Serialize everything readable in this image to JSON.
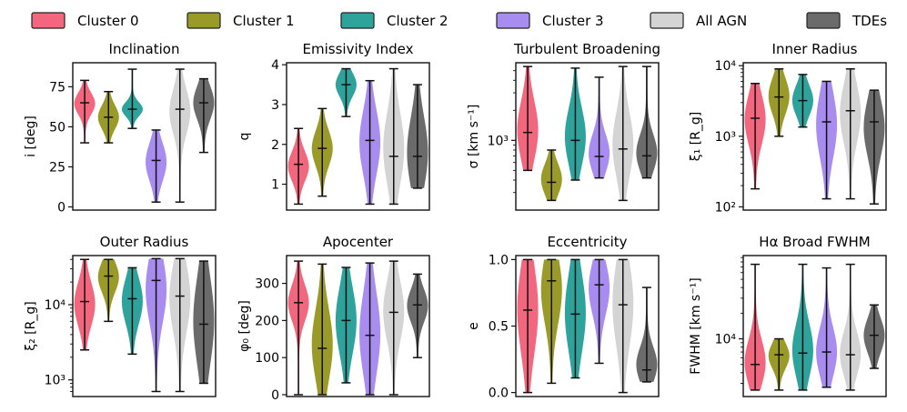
{
  "legend": [
    {
      "label": "Cluster 0",
      "color": "#f2677e"
    },
    {
      "label": "Cluster 1",
      "color": "#9a9a28"
    },
    {
      "label": "Cluster 2",
      "color": "#2ea39b"
    },
    {
      "label": "Cluster 3",
      "color": "#a98cf0"
    },
    {
      "label": "All AGN",
      "color": "#d4d4d4"
    },
    {
      "label": "TDEs",
      "color": "#6b6b6b"
    }
  ],
  "chart_data": [
    {
      "type": "violin",
      "title": "Inclination",
      "ylabel": "i [deg]",
      "scale": "linear",
      "ylim": [
        -2,
        90
      ],
      "ticks": [
        0,
        25,
        50,
        75
      ],
      "tick_labels": [
        "0",
        "25",
        "50",
        "75"
      ],
      "minor": [],
      "series": [
        {
          "name": "Cluster 0",
          "min": 40,
          "max": 79,
          "median": 65,
          "q1": 60,
          "q3": 69
        },
        {
          "name": "Cluster 1",
          "min": 40,
          "max": 72,
          "median": 56,
          "q1": 51,
          "q3": 61
        },
        {
          "name": "Cluster 2",
          "min": 49,
          "max": 86,
          "median": 61,
          "q1": 58,
          "q3": 64
        },
        {
          "name": "Cluster 3",
          "min": 3,
          "max": 48,
          "median": 29,
          "q1": 20,
          "q3": 36
        },
        {
          "name": "All AGN",
          "min": 3,
          "max": 86,
          "median": 61,
          "q1": 50,
          "q3": 69
        },
        {
          "name": "TDEs",
          "min": 34,
          "max": 80,
          "median": 65,
          "q1": 58,
          "q3": 72
        }
      ]
    },
    {
      "type": "violin",
      "title": "Emissivity Index",
      "ylabel": "q",
      "scale": "linear",
      "ylim": [
        0.35,
        4.05
      ],
      "ticks": [
        1,
        2,
        3,
        4
      ],
      "tick_labels": [
        "1",
        "2",
        "3",
        "4"
      ],
      "minor": [],
      "series": [
        {
          "name": "Cluster 0",
          "min": 0.5,
          "max": 2.4,
          "median": 1.5,
          "q1": 1.2,
          "q3": 1.7
        },
        {
          "name": "Cluster 1",
          "min": 0.7,
          "max": 2.9,
          "median": 1.9,
          "q1": 1.6,
          "q3": 2.2
        },
        {
          "name": "Cluster 2",
          "min": 2.7,
          "max": 3.9,
          "median": 3.5,
          "q1": 3.3,
          "q3": 3.7
        },
        {
          "name": "Cluster 3",
          "min": 0.5,
          "max": 3.6,
          "median": 2.1,
          "q1": 1.5,
          "q3": 2.6
        },
        {
          "name": "All AGN",
          "min": 0.5,
          "max": 3.9,
          "median": 1.7,
          "q1": 1.3,
          "q3": 2.5
        },
        {
          "name": "TDEs",
          "min": 0.9,
          "max": 3.5,
          "median": 1.7,
          "q1": 1.2,
          "q3": 2.4
        }
      ]
    },
    {
      "type": "violin",
      "title": "Turbulent Broadening",
      "ylabel": "σ [km s⁻¹]",
      "scale": "log",
      "ylim": [
        200,
        6000
      ],
      "ticks": [
        1000
      ],
      "tick_labels": [
        "10³"
      ],
      "minor": [
        300,
        400,
        500,
        600,
        700,
        800,
        900,
        2000,
        3000,
        4000,
        5000
      ],
      "series": [
        {
          "name": "Cluster 0",
          "min": 500,
          "max": 5500,
          "median": 1200,
          "q1": 800,
          "q3": 2000
        },
        {
          "name": "Cluster 1",
          "min": 250,
          "max": 800,
          "median": 380,
          "q1": 320,
          "q3": 520
        },
        {
          "name": "Cluster 2",
          "min": 400,
          "max": 5300,
          "median": 1000,
          "q1": 700,
          "q3": 1700
        },
        {
          "name": "Cluster 3",
          "min": 420,
          "max": 4300,
          "median": 690,
          "q1": 550,
          "q3": 1000
        },
        {
          "name": "All AGN",
          "min": 250,
          "max": 5500,
          "median": 820,
          "q1": 550,
          "q3": 1500
        },
        {
          "name": "TDEs",
          "min": 420,
          "max": 5500,
          "median": 700,
          "q1": 560,
          "q3": 1000
        }
      ]
    },
    {
      "type": "violin",
      "title": "Inner Radius",
      "ylabel": "ξ₁ [R_g]",
      "scale": "log",
      "ylim": [
        90,
        11000
      ],
      "ticks": [
        100,
        1000,
        10000
      ],
      "tick_labels": [
        "10²",
        "10³",
        "10⁴"
      ],
      "minor": [
        200,
        300,
        400,
        500,
        600,
        700,
        800,
        900,
        2000,
        3000,
        4000,
        5000,
        6000,
        7000,
        8000,
        9000
      ],
      "series": [
        {
          "name": "Cluster 0",
          "min": 180,
          "max": 5600,
          "median": 1800,
          "q1": 1000,
          "q3": 3000
        },
        {
          "name": "Cluster 1",
          "min": 1000,
          "max": 9000,
          "median": 3600,
          "q1": 2500,
          "q3": 5500
        },
        {
          "name": "Cluster 2",
          "min": 1350,
          "max": 7500,
          "median": 3200,
          "q1": 2300,
          "q3": 4500
        },
        {
          "name": "Cluster 3",
          "min": 130,
          "max": 6000,
          "median": 1600,
          "q1": 700,
          "q3": 3000
        },
        {
          "name": "All AGN",
          "min": 130,
          "max": 9000,
          "median": 2300,
          "q1": 1100,
          "q3": 4000
        },
        {
          "name": "TDEs",
          "min": 110,
          "max": 4500,
          "median": 1600,
          "q1": 700,
          "q3": 2500
        }
      ]
    },
    {
      "type": "violin",
      "title": "Outer Radius",
      "ylabel": "ξ₂ [R_g]",
      "scale": "log",
      "ylim": [
        600,
        45000
      ],
      "ticks": [
        1000,
        10000
      ],
      "tick_labels": [
        "10³",
        "10⁴"
      ],
      "minor": [
        700,
        800,
        900,
        2000,
        3000,
        4000,
        5000,
        6000,
        7000,
        8000,
        9000,
        20000,
        30000,
        40000
      ],
      "series": [
        {
          "name": "Cluster 0",
          "min": 2500,
          "max": 40000,
          "median": 11000,
          "q1": 6500,
          "q3": 16000
        },
        {
          "name": "Cluster 1",
          "min": 6000,
          "max": 40000,
          "median": 24000,
          "q1": 17000,
          "q3": 32000
        },
        {
          "name": "Cluster 2",
          "min": 2200,
          "max": 31000,
          "median": 12000,
          "q1": 7000,
          "q3": 18000
        },
        {
          "name": "Cluster 3",
          "min": 700,
          "max": 41000,
          "median": 21000,
          "q1": 8000,
          "q3": 32000
        },
        {
          "name": "All AGN",
          "min": 700,
          "max": 41000,
          "median": 13000,
          "q1": 6000,
          "q3": 25000
        },
        {
          "name": "TDEs",
          "min": 900,
          "max": 38000,
          "median": 5500,
          "q1": 2500,
          "q3": 15000
        }
      ]
    },
    {
      "type": "violin",
      "title": "Apocenter",
      "ylabel": "φ₀ [deg]",
      "scale": "linear",
      "ylim": [
        -5,
        375
      ],
      "ticks": [
        0,
        100,
        200,
        300
      ],
      "tick_labels": [
        "0",
        "100",
        "200",
        "300"
      ],
      "minor": [],
      "series": [
        {
          "name": "Cluster 0",
          "min": 0,
          "max": 360,
          "median": 248,
          "q1": 215,
          "q3": 280
        },
        {
          "name": "Cluster 1",
          "min": 0,
          "max": 352,
          "median": 125,
          "q1": 70,
          "q3": 200
        },
        {
          "name": "Cluster 2",
          "min": 32,
          "max": 343,
          "median": 200,
          "q1": 140,
          "q3": 260
        },
        {
          "name": "Cluster 3",
          "min": 0,
          "max": 355,
          "median": 160,
          "q1": 90,
          "q3": 240
        },
        {
          "name": "All AGN",
          "min": 0,
          "max": 360,
          "median": 222,
          "q1": 170,
          "q3": 280
        },
        {
          "name": "TDEs",
          "min": 100,
          "max": 325,
          "median": 242,
          "q1": 210,
          "q3": 270
        }
      ]
    },
    {
      "type": "violin",
      "title": "Eccentricity",
      "ylabel": "e",
      "scale": "linear",
      "ylim": [
        -0.03,
        1.03
      ],
      "ticks": [
        0.0,
        0.5,
        1.0
      ],
      "tick_labels": [
        "0.0",
        "0.5",
        "1.0"
      ],
      "minor": [],
      "series": [
        {
          "name": "Cluster 0",
          "min": 0.0,
          "max": 1.0,
          "median": 0.62,
          "q1": 0.4,
          "q3": 0.85
        },
        {
          "name": "Cluster 1",
          "min": 0.07,
          "max": 1.0,
          "median": 0.84,
          "q1": 0.6,
          "q3": 0.95
        },
        {
          "name": "Cluster 2",
          "min": 0.11,
          "max": 1.0,
          "median": 0.59,
          "q1": 0.4,
          "q3": 0.8
        },
        {
          "name": "Cluster 3",
          "min": 0.22,
          "max": 1.0,
          "median": 0.81,
          "q1": 0.65,
          "q3": 0.92
        },
        {
          "name": "All AGN",
          "min": 0.0,
          "max": 1.0,
          "median": 0.66,
          "q1": 0.45,
          "q3": 0.88
        },
        {
          "name": "TDEs",
          "min": 0.08,
          "max": 0.79,
          "median": 0.17,
          "q1": 0.12,
          "q3": 0.3
        }
      ]
    },
    {
      "type": "violin",
      "title": "Hα Broad FWHM",
      "ylabel": "FWHM [km s⁻¹]",
      "scale": "log",
      "ylim": [
        2100,
        95000
      ],
      "ticks": [
        10000
      ],
      "tick_labels": [
        "10⁴"
      ],
      "minor": [
        3000,
        4000,
        5000,
        6000,
        7000,
        8000,
        9000,
        20000,
        30000,
        40000,
        50000,
        60000,
        70000,
        80000,
        90000
      ],
      "series": [
        {
          "name": "Cluster 0",
          "min": 2500,
          "max": 75000,
          "median": 5000,
          "q1": 3500,
          "q3": 8000
        },
        {
          "name": "Cluster 1",
          "min": 2500,
          "max": 10000,
          "median": 6500,
          "q1": 5000,
          "q3": 8000
        },
        {
          "name": "Cluster 2",
          "min": 2500,
          "max": 75000,
          "median": 6800,
          "q1": 4500,
          "q3": 12000
        },
        {
          "name": "Cluster 3",
          "min": 2700,
          "max": 68000,
          "median": 7000,
          "q1": 4500,
          "q3": 11000
        },
        {
          "name": "All AGN",
          "min": 2500,
          "max": 75000,
          "median": 6500,
          "q1": 4500,
          "q3": 10000
        },
        {
          "name": "TDEs",
          "min": 4500,
          "max": 25000,
          "median": 11000,
          "q1": 8000,
          "q3": 15000
        }
      ]
    }
  ]
}
